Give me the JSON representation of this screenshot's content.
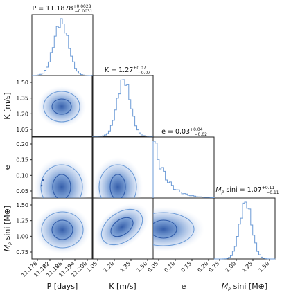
{
  "chart_data": {
    "type": "corner",
    "parameters": [
      {
        "id": "P",
        "axis_label": "P [days]",
        "title": "P = 11.1878",
        "err_plus": "+0.0028",
        "err_minus": "−0.0031",
        "median": 11.1878,
        "sigma": 0.003,
        "range": [
          11.1755,
          11.2015
        ],
        "ticks": [
          "11.176",
          "11.182",
          "11.188",
          "11.194",
          "11.200"
        ]
      },
      {
        "id": "K",
        "axis_label": "K [m/s]",
        "title": "K = 1.27",
        "err_plus": "+0.07",
        "err_minus": "−0.07",
        "median": 1.27,
        "sigma": 0.07,
        "range": [
          0.97,
          1.58
        ],
        "ticks": [
          "1.05",
          "1.20",
          "1.35",
          "1.50"
        ],
        "yticks": [
          "1.05",
          "1.20",
          "1.35",
          "1.50"
        ]
      },
      {
        "id": "e",
        "axis_label": "e",
        "title": "e = 0.03",
        "err_plus": "+0.04",
        "err_minus": "−0.02",
        "median": 0.03,
        "range": [
          0.0,
          0.24
        ],
        "ticks": [
          "0.05",
          "0.10",
          "0.15",
          "0.20"
        ],
        "yticks": [
          "0.05",
          "0.10",
          "0.15",
          "0.20"
        ]
      },
      {
        "id": "Mpsini",
        "axis_label_main": "M",
        "axis_label_sub": "p",
        "axis_label_rest": " sini [M",
        "axis_label_end": "]",
        "title_main": "M",
        "title_sub": "p",
        "title_rest": " sini = 1.07",
        "err_plus": "+0.11",
        "err_minus": "−0.11",
        "median": 1.07,
        "sigma": 0.11,
        "range": [
          0.62,
          1.58
        ],
        "ticks": [
          "0.75",
          "1.00",
          "1.25",
          "1.50"
        ],
        "yticks": [
          "0.75",
          "1.00",
          "1.25",
          "1.50"
        ]
      }
    ],
    "earth_symbol": "⊕",
    "colors": {
      "contour": "#6b9ad6",
      "fill_dark": "#2f5aa8",
      "hist": "#6b9ad6",
      "frame": "#222222"
    }
  }
}
